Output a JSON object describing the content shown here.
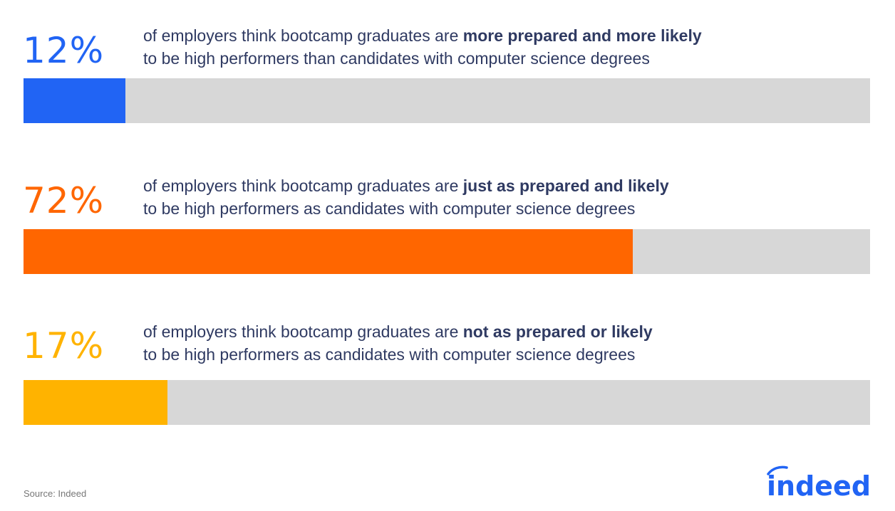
{
  "chart_data": {
    "type": "bar",
    "orientation": "horizontal",
    "xlim": [
      0,
      100
    ],
    "colors": [
      "#2164f4",
      "#ff6600",
      "#ffb300"
    ],
    "items": [
      {
        "percent_label": "12%",
        "value": 12,
        "text_pre": "of employers think bootcamp graduates are ",
        "text_bold": "more prepared and more likely",
        "text_post": "to be high performers than candidates with computer science degrees"
      },
      {
        "percent_label": "72%",
        "value": 72,
        "text_pre": "of employers think bootcamp graduates are ",
        "text_bold": "just as prepared and likely",
        "text_post": "to be high performers as candidates with computer science degrees"
      },
      {
        "percent_label": "17%",
        "value": 17,
        "text_pre": "of employers think bootcamp graduates are ",
        "text_bold": "not as prepared or likely",
        "text_post": "to be high performers as candidates with computer science degrees"
      }
    ]
  },
  "footer": {
    "source": "Source: Indeed",
    "logo_text": "indeed"
  }
}
